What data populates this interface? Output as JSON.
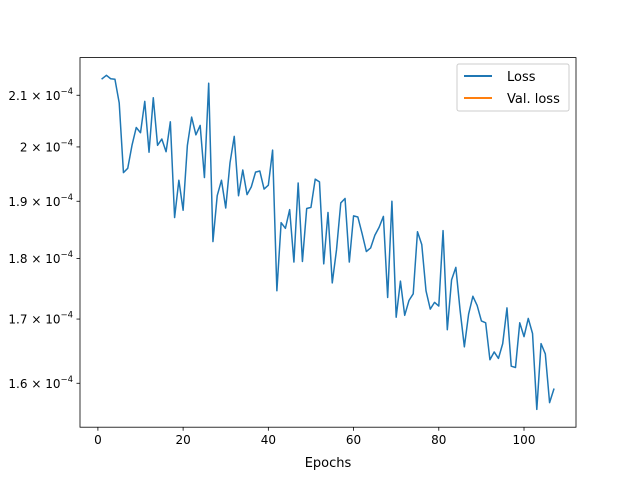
{
  "chart_data": {
    "type": "line",
    "title": "",
    "xlabel": "Epochs",
    "ylabel": "",
    "yscale": "log",
    "xlim": [
      -4.2,
      112.2
    ],
    "ylim": [
      0.0001535,
      0.0002176
    ],
    "xticks": [
      0,
      20,
      40,
      60,
      80,
      100
    ],
    "xtick_labels": [
      "0",
      "20",
      "40",
      "60",
      "80",
      "100"
    ],
    "yticks": [
      0.00016,
      0.00017,
      0.00018,
      0.00019,
      0.0002,
      0.00021
    ],
    "ytick_labels": [
      {
        "mantissa": "1.6",
        "times": "×",
        "base": "10",
        "exp": "−4"
      },
      {
        "mantissa": "1.7",
        "times": "×",
        "base": "10",
        "exp": "−4"
      },
      {
        "mantissa": "1.8",
        "times": "×",
        "base": "10",
        "exp": "−4"
      },
      {
        "mantissa": "1.9",
        "times": "×",
        "base": "10",
        "exp": "−4"
      },
      {
        "mantissa": "2",
        "times": "×",
        "base": "10",
        "exp": "−4"
      },
      {
        "mantissa": "2.1",
        "times": "×",
        "base": "10",
        "exp": "−4"
      }
    ],
    "grid": false,
    "legend": {
      "position": "upper right",
      "entries": [
        {
          "label": "Loss",
          "color": "#1f77b4"
        },
        {
          "label": "Val. loss",
          "color": "#ff7f0e"
        }
      ]
    },
    "series": [
      {
        "name": "Loss",
        "color": "#1f77b4",
        "x": [
          1,
          2,
          3,
          4,
          5,
          6,
          7,
          8,
          9,
          10,
          11,
          12,
          13,
          14,
          15,
          16,
          17,
          18,
          19,
          20,
          21,
          22,
          23,
          24,
          25,
          26,
          27,
          28,
          29,
          30,
          31,
          32,
          33,
          34,
          35,
          36,
          37,
          38,
          39,
          40,
          41,
          42,
          43,
          44,
          45,
          46,
          47,
          48,
          49,
          50,
          51,
          52,
          53,
          54,
          55,
          56,
          57,
          58,
          59,
          60,
          61,
          62,
          63,
          64,
          65,
          66,
          67,
          68,
          69,
          70,
          71,
          72,
          73,
          74,
          75,
          76,
          77,
          78,
          79,
          80,
          81,
          82,
          83,
          84,
          85,
          86,
          87,
          88,
          89,
          90,
          91,
          92,
          93,
          94,
          95,
          96,
          97,
          98,
          99,
          100,
          101,
          102,
          103,
          104,
          105,
          106,
          107
        ],
        "y": [
          0.0002133,
          0.000214,
          0.0002133,
          0.0002132,
          0.0002085,
          0.0001952,
          0.000196,
          0.0002003,
          0.0002037,
          0.0002027,
          0.0002088,
          0.000199,
          0.0002095,
          0.0002003,
          0.0002015,
          0.0001991,
          0.0002048,
          0.0001871,
          0.0001938,
          0.0001884,
          0.0002003,
          0.0002057,
          0.0002023,
          0.0002041,
          0.0001943,
          0.0002124,
          0.0001829,
          0.000191,
          0.0001938,
          0.0001888,
          0.000197,
          0.000202,
          0.000191,
          0.0001957,
          0.0001912,
          0.0001926,
          0.0001953,
          0.0001955,
          0.0001922,
          0.0001929,
          0.0001994,
          0.0001746,
          0.0001862,
          0.0001852,
          0.0001885,
          0.0001794,
          0.0001933,
          0.0001795,
          0.0001887,
          0.0001889,
          0.000194,
          0.0001935,
          0.0001791,
          0.000188,
          0.0001759,
          0.0001815,
          0.0001897,
          0.0001905,
          0.0001794,
          0.0001874,
          0.0001872,
          0.0001843,
          0.0001812,
          0.0001818,
          0.000184,
          0.0001854,
          0.0001873,
          0.0001735,
          0.00019,
          0.0001703,
          0.0001762,
          0.0001706,
          0.000173,
          0.0001741,
          0.0001846,
          0.0001824,
          0.0001746,
          0.0001716,
          0.0001727,
          0.0001721,
          0.0001848,
          0.0001683,
          0.0001764,
          0.0001785,
          0.0001714,
          0.0001656,
          0.0001708,
          0.0001737,
          0.0001722,
          0.0001697,
          0.0001694,
          0.0001636,
          0.0001648,
          0.0001638,
          0.0001661,
          0.0001718,
          0.0001626,
          0.0001624,
          0.0001694,
          0.0001672,
          0.0001701,
          0.0001677,
          0.0001561,
          0.0001661,
          0.0001645,
          0.0001571,
          0.0001591
        ]
      },
      {
        "name": "Val. loss",
        "color": "#ff7f0e",
        "x": [],
        "y": []
      }
    ]
  }
}
